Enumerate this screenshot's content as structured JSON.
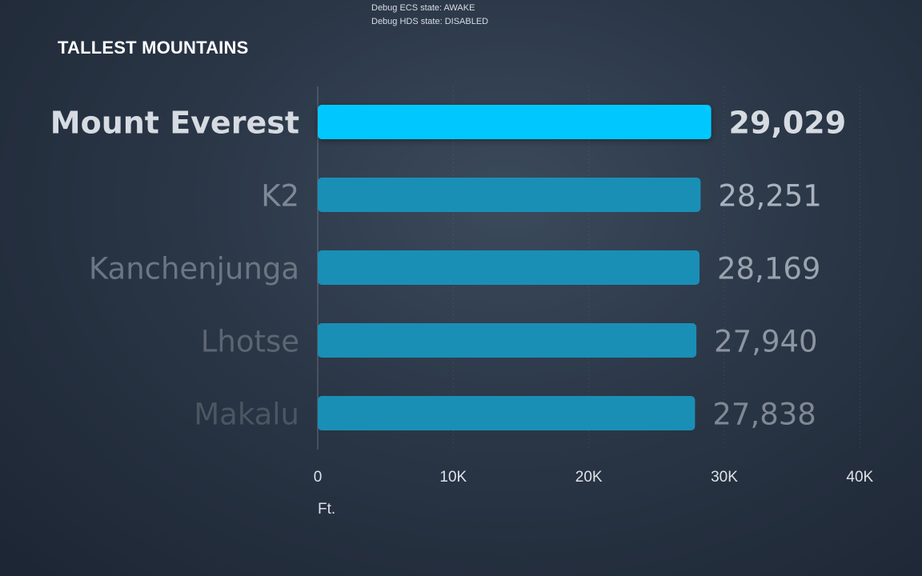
{
  "debug": {
    "line1": "Debug ECS state: AWAKE",
    "line2": "Debug HDS state: DISABLED"
  },
  "chart_title": "TALLEST MOUNTAINS",
  "chart_data": {
    "type": "bar",
    "orientation": "horizontal",
    "title": "TALLEST MOUNTAINS",
    "xlabel": "Ft.",
    "ylabel": "",
    "xlim": [
      0,
      40000
    ],
    "ticks": [
      0,
      10000,
      20000,
      30000,
      40000
    ],
    "tick_labels": [
      "0",
      "10K",
      "20K",
      "30K",
      "40K"
    ],
    "categories": [
      "Mount Everest",
      "K2",
      "Kanchenjunga",
      "Lhotse",
      "Makalu"
    ],
    "values": [
      29029,
      28251,
      28169,
      27940,
      27838
    ],
    "value_labels": [
      "29,029",
      "28,251",
      "28,169",
      "27,940",
      "27,838"
    ],
    "highlight_index": 0,
    "grid": true
  },
  "colors": {
    "highlight_bar": "#00c8ff",
    "bar": "#1a8fb6",
    "highlight_text": "#d6dbe2",
    "label_gradient": [
      "#7e8896",
      "#6c7582",
      "#5c6571",
      "#4c5561"
    ],
    "value_gradient": [
      "#a9b2bd",
      "#9aa3ae",
      "#8c95a0",
      "#7f8893"
    ],
    "tick_text": "#dde2e8",
    "axis": "#8a93a0"
  }
}
